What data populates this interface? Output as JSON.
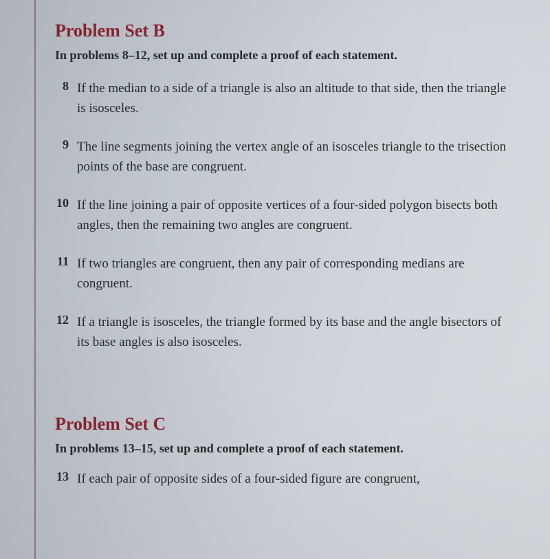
{
  "sectionB": {
    "title": "Problem Set B",
    "subtitle": "In problems 8–12, set up and complete a proof of each statement.",
    "problems": [
      {
        "number": "8",
        "text": "If the median to a side of a triangle is also an altitude to that side, then the triangle is isosceles."
      },
      {
        "number": "9",
        "text": "The line segments joining the vertex angle of an isosceles triangle to the trisection points of the base are congruent."
      },
      {
        "number": "10",
        "text": "If the line joining a pair of opposite vertices of a four-sided polygon bisects both angles, then the remaining two angles are congruent."
      },
      {
        "number": "11",
        "text": "If two triangles are congruent, then any pair of corresponding medians are congruent."
      },
      {
        "number": "12",
        "text": "If a triangle is isosceles, the triangle formed by its base and the angle bisectors of its base angles is also isosceles."
      }
    ]
  },
  "sectionC": {
    "title": "Problem Set C",
    "subtitle": "In problems 13–15, set up and complete a proof of each statement.",
    "problems": [
      {
        "number": "13",
        "text": "If each pair of opposite sides of a four-sided figure are congruent,"
      }
    ]
  },
  "colors": {
    "heading": "#8b2530",
    "body_text": "#2a2a2a",
    "margin_line": "#7a4a4a",
    "background_light": "#d8dce1",
    "background_dark": "#b8bec5"
  },
  "typography": {
    "title_fontsize": 26,
    "subtitle_fontsize": 18,
    "body_fontsize": 19,
    "font_family": "Georgia, serif"
  }
}
